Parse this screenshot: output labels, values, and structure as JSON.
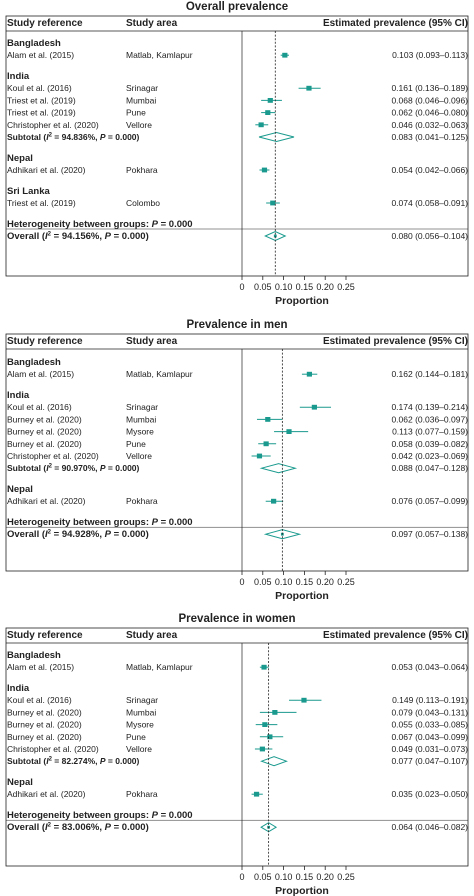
{
  "chart_data": [
    {
      "type": "forest",
      "title": "Overall prevalence",
      "xlabel": "Proportion",
      "xlim": [
        0,
        0.25
      ],
      "xticks": [
        "0",
        "0.05",
        "0.10",
        "0.15",
        "0.20",
        "0.25"
      ],
      "headers": {
        "study": "Study reference",
        "area": "Study area",
        "estimate": "Estimated prevalence (95% CI)"
      },
      "reference_line": 0.08,
      "rows": [
        {
          "kind": "group",
          "label": "Bangladesh"
        },
        {
          "kind": "study",
          "study": "Alam et al. (2015)",
          "area": "Matlab, Kamlapur",
          "est": 0.103,
          "lo": 0.093,
          "hi": 0.113,
          "ci_text": "0.103 (0.093–0.113)"
        },
        {
          "kind": "gap"
        },
        {
          "kind": "group",
          "label": "India"
        },
        {
          "kind": "study",
          "study": "Koul et al. (2016)",
          "area": "Srinagar",
          "est": 0.161,
          "lo": 0.136,
          "hi": 0.189,
          "ci_text": "0.161 (0.136–0.189)"
        },
        {
          "kind": "study",
          "study": "Triest et al. (2019)",
          "area": "Mumbai",
          "est": 0.068,
          "lo": 0.046,
          "hi": 0.096,
          "ci_text": "0.068 (0.046–0.096)"
        },
        {
          "kind": "study",
          "study": "Triest et al. (2019)",
          "area": "Pune",
          "est": 0.062,
          "lo": 0.046,
          "hi": 0.08,
          "ci_text": "0.062 (0.046–0.080)"
        },
        {
          "kind": "study",
          "study": "Christopher et al. (2020)",
          "area": "Vellore",
          "est": 0.046,
          "lo": 0.032,
          "hi": 0.063,
          "ci_text": "0.046 (0.032–0.063)"
        },
        {
          "kind": "subtotal",
          "pre": "Subtotal (",
          "i2": "I",
          "sup": "2",
          "post": " = 94.836%, ",
          "p": "P",
          "pval": " = 0.000)",
          "est": 0.083,
          "lo": 0.041,
          "hi": 0.125,
          "ci_text": "0.083 (0.041–0.125)"
        },
        {
          "kind": "gap"
        },
        {
          "kind": "group",
          "label": "Nepal"
        },
        {
          "kind": "study",
          "study": "Adhikari et al. (2020)",
          "area": "Pokhara",
          "est": 0.054,
          "lo": 0.042,
          "hi": 0.066,
          "ci_text": "0.054 (0.042–0.066)"
        },
        {
          "kind": "gap"
        },
        {
          "kind": "group",
          "label": "Sri Lanka"
        },
        {
          "kind": "study",
          "study": "Triest et al. (2019)",
          "area": "Colombo",
          "est": 0.074,
          "lo": 0.058,
          "hi": 0.091,
          "ci_text": "0.074 (0.058–0.091)"
        },
        {
          "kind": "gap"
        },
        {
          "kind": "het",
          "pre": "Heterogeneity between groups: ",
          "p": "P",
          "post": " = 0.000"
        },
        {
          "kind": "overall",
          "pre": "Overall (",
          "i2": "I",
          "sup": "2",
          "post": " = 94.156%, ",
          "p": "P",
          "pval": " = 0.000)",
          "est": 0.08,
          "lo": 0.056,
          "hi": 0.104,
          "ci_text": "0.080 (0.056–0.104)"
        }
      ]
    },
    {
      "type": "forest",
      "title": "Prevalence in men",
      "xlabel": "Proportion",
      "xlim": [
        0,
        0.25
      ],
      "xticks": [
        "0",
        "0.05",
        "0.10",
        "0.15",
        "0.20",
        "0.25"
      ],
      "headers": {
        "study": "Study reference",
        "area": "Study area",
        "estimate": "Estimated prevalence (95% CI)"
      },
      "reference_line": 0.097,
      "rows": [
        {
          "kind": "group",
          "label": "Bangladesh"
        },
        {
          "kind": "study",
          "study": "Alam et al. (2015)",
          "area": "Matlab, Kamlapur",
          "est": 0.162,
          "lo": 0.144,
          "hi": 0.181,
          "ci_text": "0.162 (0.144–0.181)"
        },
        {
          "kind": "gap"
        },
        {
          "kind": "group",
          "label": "India"
        },
        {
          "kind": "study",
          "study": "Koul et al. (2016)",
          "area": "Srinagar",
          "est": 0.174,
          "lo": 0.139,
          "hi": 0.214,
          "ci_text": "0.174 (0.139–0.214)"
        },
        {
          "kind": "study",
          "study": "Burney et al. (2020)",
          "area": "Mumbai",
          "est": 0.062,
          "lo": 0.036,
          "hi": 0.097,
          "ci_text": "0.062 (0.036–0.097)"
        },
        {
          "kind": "study",
          "study": "Burney et al. (2020)",
          "area": "Mysore",
          "est": 0.113,
          "lo": 0.077,
          "hi": 0.159,
          "ci_text": "0.113 (0.077–0.159)"
        },
        {
          "kind": "study",
          "study": "Burney et al. (2020)",
          "area": "Pune",
          "est": 0.058,
          "lo": 0.039,
          "hi": 0.082,
          "ci_text": "0.058 (0.039–0.082)"
        },
        {
          "kind": "study",
          "study": "Christopher et al. (2020)",
          "area": "Vellore",
          "est": 0.042,
          "lo": 0.023,
          "hi": 0.069,
          "ci_text": "0.042 (0.023–0.069)"
        },
        {
          "kind": "subtotal",
          "pre": "Subtotal (",
          "i2": "I",
          "sup": "2",
          "post": " = 90.970%, ",
          "p": "P",
          "pval": " = 0.000)",
          "est": 0.088,
          "lo": 0.047,
          "hi": 0.128,
          "ci_text": "0.088 (0.047–0.128)"
        },
        {
          "kind": "gap"
        },
        {
          "kind": "group",
          "label": "Nepal"
        },
        {
          "kind": "study",
          "study": "Adhikari et al. (2020)",
          "area": "Pokhara",
          "est": 0.076,
          "lo": 0.057,
          "hi": 0.099,
          "ci_text": "0.076 (0.057–0.099)"
        },
        {
          "kind": "gap"
        },
        {
          "kind": "het",
          "pre": "Heterogeneity between groups: ",
          "p": "P",
          "post": " = 0.000"
        },
        {
          "kind": "overall",
          "pre": "Overall (",
          "i2": "I",
          "sup": "2",
          "post": " = 94.928%, ",
          "p": "P",
          "pval": " = 0.000)",
          "est": 0.097,
          "lo": 0.057,
          "hi": 0.138,
          "ci_text": "0.097 (0.057–0.138)"
        }
      ]
    },
    {
      "type": "forest",
      "title": "Prevalence in women",
      "xlabel": "Proportion",
      "xlim": [
        0,
        0.25
      ],
      "xticks": [
        "0",
        "0.05",
        "0.10",
        "0.15",
        "0.20",
        "0.25"
      ],
      "headers": {
        "study": "Study reference",
        "area": "Study area",
        "estimate": "Estimated prevalence (95% CI)"
      },
      "reference_line": 0.064,
      "rows": [
        {
          "kind": "group",
          "label": "Bangladesh"
        },
        {
          "kind": "study",
          "study": "Alam et al. (2015)",
          "area": "Matlab, Kamlapur",
          "est": 0.053,
          "lo": 0.043,
          "hi": 0.064,
          "ci_text": "0.053 (0.043–0.064)"
        },
        {
          "kind": "gap"
        },
        {
          "kind": "group",
          "label": "India"
        },
        {
          "kind": "study",
          "study": "Koul et al. (2016)",
          "area": "Srinagar",
          "est": 0.149,
          "lo": 0.113,
          "hi": 0.191,
          "ci_text": "0.149 (0.113–0.191)"
        },
        {
          "kind": "study",
          "study": "Burney et al. (2020)",
          "area": "Mumbai",
          "est": 0.079,
          "lo": 0.043,
          "hi": 0.131,
          "ci_text": "0.079 (0.043–0.131)"
        },
        {
          "kind": "study",
          "study": "Burney et al. (2020)",
          "area": "Mysore",
          "est": 0.055,
          "lo": 0.033,
          "hi": 0.085,
          "ci_text": "0.055 (0.033–0.085)"
        },
        {
          "kind": "study",
          "study": "Burney et al. (2020)",
          "area": "Pune",
          "est": 0.067,
          "lo": 0.043,
          "hi": 0.099,
          "ci_text": "0.067 (0.043–0.099)"
        },
        {
          "kind": "study",
          "study": "Christopher et al. (2020)",
          "area": "Vellore",
          "est": 0.049,
          "lo": 0.031,
          "hi": 0.073,
          "ci_text": "0.049 (0.031–0.073)"
        },
        {
          "kind": "subtotal",
          "pre": "Subtotal (",
          "i2": "I",
          "sup": "2",
          "post": " = 82.274%, ",
          "p": "P",
          "pval": " = 0.000)",
          "est": 0.077,
          "lo": 0.047,
          "hi": 0.107,
          "ci_text": "0.077 (0.047–0.107)"
        },
        {
          "kind": "gap"
        },
        {
          "kind": "group",
          "label": "Nepal"
        },
        {
          "kind": "study",
          "study": "Adhikari et al. (2020)",
          "area": "Pokhara",
          "est": 0.035,
          "lo": 0.023,
          "hi": 0.05,
          "ci_text": "0.035 (0.023–0.050)"
        },
        {
          "kind": "gap"
        },
        {
          "kind": "het",
          "pre": "Heterogeneity between groups: ",
          "p": "P",
          "post": " = 0.000"
        },
        {
          "kind": "overall",
          "pre": "Overall (",
          "i2": "I",
          "sup": "2",
          "post": " = 83.006%, ",
          "p": "P",
          "pval": " = 0.000)",
          "est": 0.064,
          "lo": 0.046,
          "hi": 0.082,
          "ci_text": "0.064 (0.046–0.082)"
        }
      ]
    }
  ],
  "colors": {
    "marker": "#1a9a8e",
    "line": "#222222"
  }
}
